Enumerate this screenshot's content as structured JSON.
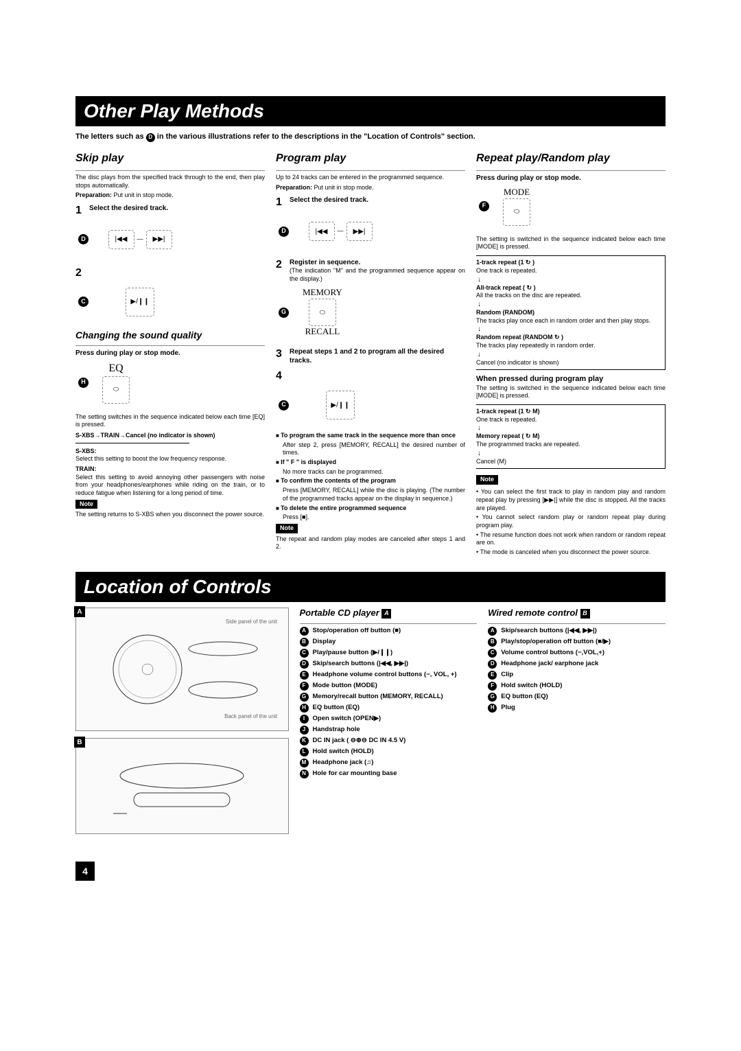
{
  "header1": "Other Play Methods",
  "intro": "The letters such as D in the various illustrations refer to the descriptions in the \"Location of Controls\" section.",
  "skip": {
    "title": "Skip play",
    "desc": "The disc plays from the specified track through to the end, then play stops automatically.",
    "prep_label": "Preparation:",
    "prep": "Put unit in stop mode.",
    "step1": "Select the desired track.",
    "step2_num": "2",
    "letterD": "D",
    "letterC": "C",
    "sound_title": "Changing the sound quality",
    "sound_press": "Press during play or stop mode.",
    "letterH": "H",
    "eq": "EQ",
    "sound_desc": "The setting switches in the sequence indicated below each time [EQ] is pressed.",
    "seq": "S-XBS→TRAIN→Cancel (no indicator is shown)",
    "sxbs_label": "S-XBS:",
    "sxbs_desc": "Select this setting to boost the low frequency response.",
    "train_label": "TRAIN:",
    "train_desc": "Select this setting to avoid annoying other passengers with noise from your headphones/earphones while riding on the train, or to reduce fatigue when listening for a long period of time.",
    "note": "Note",
    "note_text": "The setting returns to S-XBS when you disconnect the power source."
  },
  "program": {
    "title": "Program play",
    "desc": "Up to 24 tracks can be entered in the programmed sequence.",
    "prep_label": "Preparation:",
    "prep": "Put unit in stop mode.",
    "step1": "Select the desired track.",
    "letterD": "D",
    "step2": "Register in sequence.",
    "step2_sub": "(The indication \"M\" and the programmed sequence appear on the display.)",
    "letterG": "G",
    "memory": "MEMORY",
    "recall": "RECALL",
    "step3": "Repeat steps 1 and 2 to program all the desired tracks.",
    "step4_num": "4",
    "letterC": "C",
    "b1": "To program the same track in the sequence more than once",
    "b1_sub": "After step 2, press [MEMORY, RECALL] the desired number of times.",
    "b2": "If \" F \" is displayed",
    "b2_sub": "No more tracks can be programmed.",
    "b3": "To confirm the contents of the program",
    "b3_sub": "Press [MEMORY, RECALL] while the disc is playing. (The number of the programmed tracks appear on the display in sequence.)",
    "b4": "To delete the entire programmed sequence",
    "b4_sub": "Press [■].",
    "note": "Note",
    "note_text": "The repeat and random play modes are canceled after steps 1 and 2."
  },
  "repeat": {
    "title": "Repeat play/Random play",
    "press": "Press during play or stop mode.",
    "letterF": "F",
    "mode": "MODE",
    "desc": "The setting is switched in the sequence indicated below each time [MODE] is pressed.",
    "r1": "1-track repeat (1 ↻ )",
    "r1_sub": "One track is repeated.",
    "r2": "All-track repeat ( ↻ )",
    "r2_sub": "All the tracks on the disc are repeated.",
    "r3": "Random (RANDOM)",
    "r3_sub": "The tracks play once each in random order and then play stops.",
    "r4": "Random repeat (RANDOM ↻ )",
    "r4_sub": "The tracks play repeatedly in random order.",
    "r5": "Cancel (no indicator is shown)",
    "prog_title": "When pressed during program play",
    "prog_desc": "The setting is switched in the sequence indicated below each time [MODE] is pressed.",
    "p1": "1-track repeat (1 ↻ M)",
    "p1_sub": "One track is repeated.",
    "p2": "Memory repeat ( ↻ M)",
    "p2_sub": "The programmed tracks are repeated.",
    "p3": "Cancel (M)",
    "note": "Note",
    "n1": "You can select the first track to play in random play and random repeat play by pressing [▶▶|] while the disc is stopped. All the tracks are played.",
    "n2": "You cannot select random play or random repeat play during program play.",
    "n3": "The resume function does not work when random or random repeat are on.",
    "n4": "The mode is canceled when you disconnect the power source."
  },
  "header2": "Location of Controls",
  "loc": {
    "boxA": "A",
    "boxB": "B",
    "side_label": "Side panel of the unit",
    "back_label": "Back panel of the unit",
    "cd_title": "Portable CD player",
    "cd_box": "A",
    "remote_title": "Wired remote control",
    "remote_box": "B",
    "cd": [
      {
        "l": "A",
        "t": "Stop/operation off button (■)"
      },
      {
        "l": "B",
        "t": "Display"
      },
      {
        "l": "C",
        "t": "Play/pause button (▶/❙❙)"
      },
      {
        "l": "D",
        "t": "Skip/search buttons (|◀◀, ▶▶|)"
      },
      {
        "l": "E",
        "t": "Headphone volume control buttons (−, VOL, +)"
      },
      {
        "l": "F",
        "t": "Mode button (MODE)"
      },
      {
        "l": "G",
        "t": "Memory/recall button (MEMORY, RECALL)"
      },
      {
        "l": "H",
        "t": "EQ button (EQ)"
      },
      {
        "l": "I",
        "t": "Open switch (OPEN▶)"
      },
      {
        "l": "J",
        "t": "Handstrap hole"
      },
      {
        "l": "K",
        "t": "DC IN jack ( ⊖⊕⊖ DC IN 4.5 V)"
      },
      {
        "l": "L",
        "t": "Hold switch (HOLD)"
      },
      {
        "l": "M",
        "t": "Headphone jack (♫)"
      },
      {
        "l": "N",
        "t": "Hole for car mounting base"
      }
    ],
    "remote": [
      {
        "l": "A",
        "t": "Skip/search buttons (|◀◀, ▶▶|)"
      },
      {
        "l": "B",
        "t": "Play/stop/operation off button (■/▶)"
      },
      {
        "l": "C",
        "t": "Volume control buttons (−,VOL,+)"
      },
      {
        "l": "D",
        "t": "Headphone jack/ earphone jack"
      },
      {
        "l": "E",
        "t": "Clip"
      },
      {
        "l": "F",
        "t": "Hold switch (HOLD)"
      },
      {
        "l": "G",
        "t": "EQ button (EQ)"
      },
      {
        "l": "H",
        "t": "Plug"
      }
    ]
  },
  "page": "4"
}
